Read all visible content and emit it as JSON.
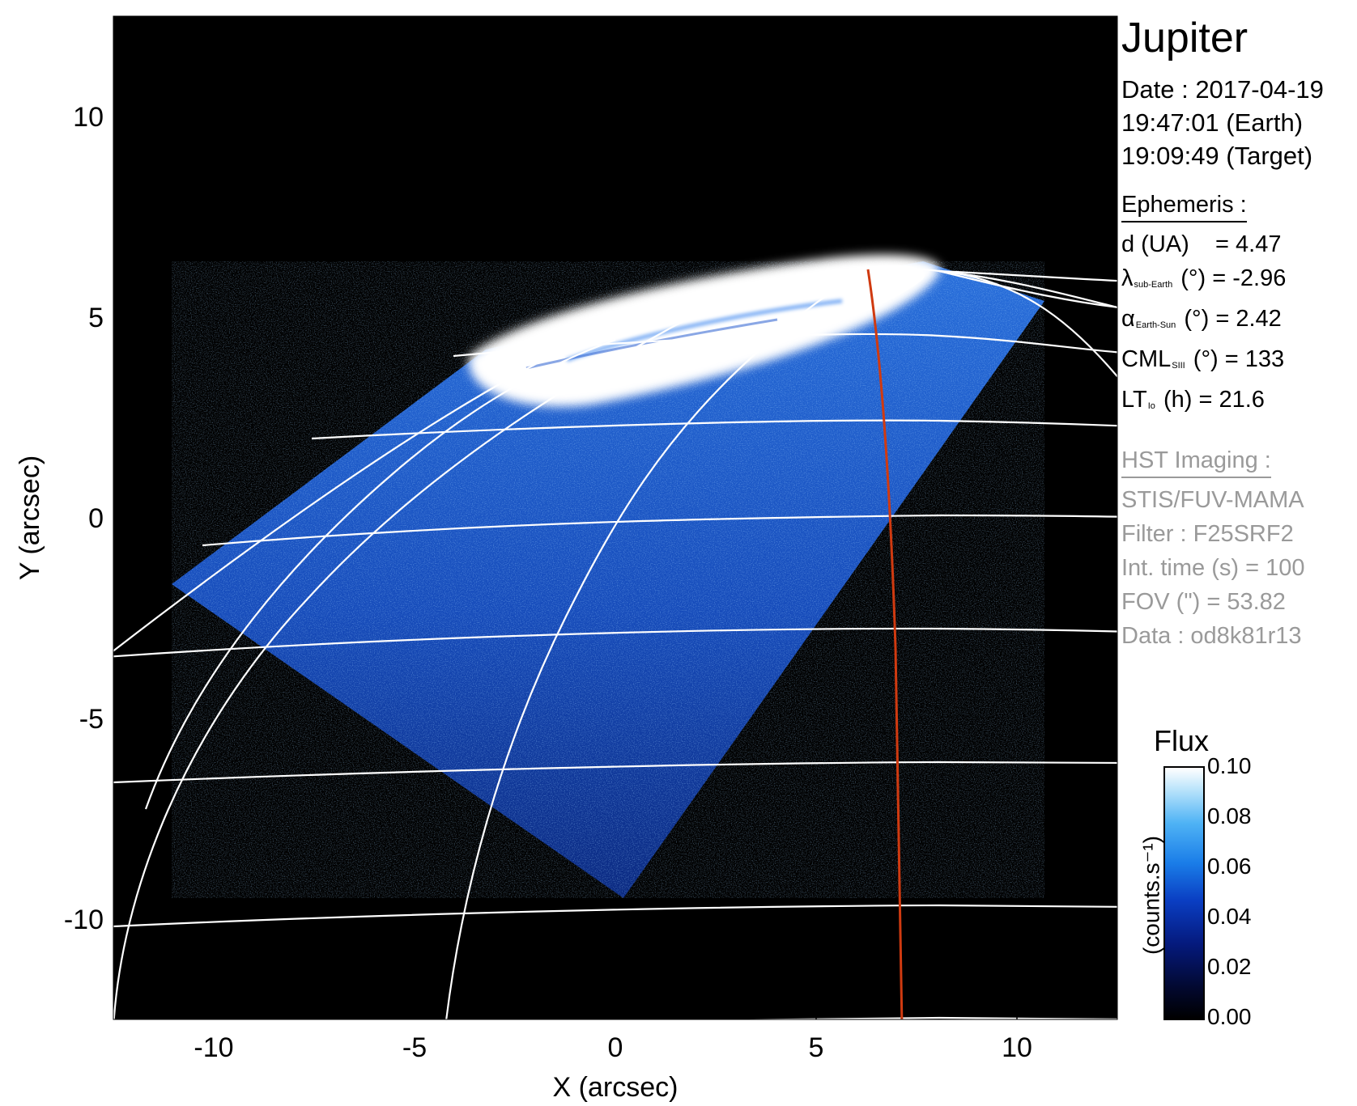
{
  "panel": {
    "planet": "Jupiter",
    "date_label": "Date : 2017-04-19",
    "time_earth": "19:47:01 (Earth)",
    "time_target": "19:09:49 (Target)",
    "ephemeris_title": "Ephemeris :",
    "ephemeris": [
      {
        "sym": "d (UA)",
        "sub": "",
        "rest": "    = 4.47"
      },
      {
        "sym": "λ",
        "sub": "sub-Earth",
        "rest": " (°) = -2.96"
      },
      {
        "sym": "α",
        "sub": "Earth-Sun",
        "rest": " (°) = 2.42"
      },
      {
        "sym": "CML",
        "sub": "SIII",
        "rest": " (°) = 133"
      },
      {
        "sym": "LT",
        "sub": "Io",
        "rest": " (h) = 21.6"
      }
    ],
    "hst_title": "HST Imaging :",
    "hst": [
      "STIS/FUV-MAMA",
      "Filter : F25SRF2",
      "Int. time (s) = 100",
      "FOV (\") = 53.82",
      "Data : od8k81r13"
    ]
  },
  "axes": {
    "x_label": "X (arcsec)",
    "y_label": "Y (arcsec)",
    "x_ticks": [
      "-10",
      "-5",
      "0",
      "5",
      "10"
    ],
    "y_ticks": [
      "10",
      "5",
      "0",
      "-5",
      "-10"
    ],
    "x_tick_values": [
      -10,
      -5,
      0,
      5,
      10
    ],
    "y_tick_values": [
      10,
      5,
      0,
      -5,
      -10
    ],
    "xlim": [
      -12.5,
      12.5
    ],
    "ylim": [
      -12.5,
      12.5
    ]
  },
  "colorbar": {
    "title": "Flux",
    "unit": "(counts.s⁻¹)",
    "ticks": [
      "0.10",
      "0.08",
      "0.06",
      "0.04",
      "0.02",
      "0.00"
    ],
    "tick_values": [
      0.1,
      0.08,
      0.06,
      0.04,
      0.02,
      0.0
    ],
    "range": [
      0.0,
      0.1
    ]
  },
  "colors": {
    "background": "#000000",
    "grid": "#ffffff",
    "meridian_highlight": "#d03a10",
    "emission_blue": "#1f6fe0",
    "auroral_oval": "#ffffff"
  }
}
